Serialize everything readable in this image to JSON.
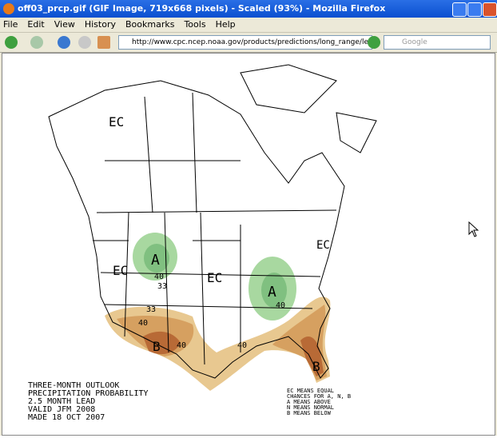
{
  "window": {
    "title": "off03_prcp.gif (GIF Image, 719x668 pixels) - Scaled (93%) - Mozilla Firefox"
  },
  "menu": [
    "File",
    "Edit",
    "View",
    "History",
    "Bookmarks",
    "Tools",
    "Help"
  ],
  "toolbar": {
    "url": "http://www.cpc.ncep.noaa.gov/products/predictions/long_range/lead03/off",
    "search": "Google"
  },
  "map": {
    "labels": [
      "EC",
      "EC",
      "EC",
      "EC",
      "A",
      "A",
      "B",
      "B",
      "40",
      "33",
      "40",
      "33",
      "40",
      "40",
      "40"
    ],
    "caption": [
      "THREE-MONTH OUTLOOK",
      "PRECIPITATION PROBABILITY",
      "2.5 MONTH LEAD",
      "VALID JFM 2008",
      "MADE 18 OCT 2007"
    ],
    "legend": [
      "EC MEANS EQUAL",
      "CHANCES FOR A, N, B",
      "A MEANS ABOVE",
      "N MEANS NORMAL",
      "B MEANS BELOW"
    ]
  }
}
